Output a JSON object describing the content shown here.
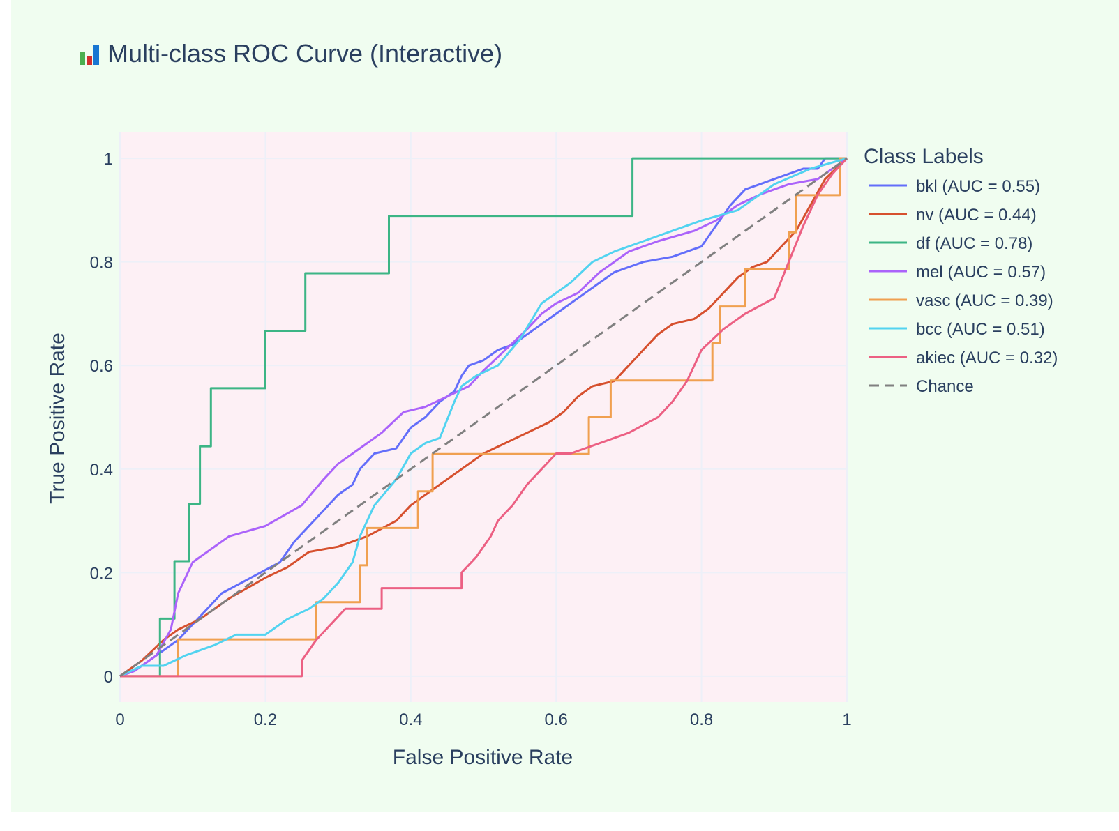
{
  "chart_data": {
    "type": "line",
    "title": "Multi-class ROC Curve (Interactive)",
    "title_icon": "bar-chart-icon",
    "xlabel": "False Positive Rate",
    "ylabel": "True Positive Rate",
    "xlim": [
      0,
      1
    ],
    "ylim": [
      -0.05,
      1.05
    ],
    "x_ticks": [
      0,
      0.2,
      0.4,
      0.6,
      0.8,
      1
    ],
    "y_ticks": [
      0,
      0.2,
      0.4,
      0.6,
      0.8,
      1
    ],
    "x_tick_labels": [
      "0",
      "0.2",
      "0.4",
      "0.6",
      "0.8",
      "1"
    ],
    "y_tick_labels": [
      "0",
      "0.2",
      "0.4",
      "0.6",
      "0.8",
      "1"
    ],
    "grid": true,
    "legend_title": "Class Labels",
    "legend_position": "right",
    "plot_background": "#fdf0f5",
    "paper_background": "#f0fdf0",
    "series": [
      {
        "name": "bkl (AUC = 0.55)",
        "color": "#636efa",
        "dash": "solid",
        "x": [
          0,
          0.02,
          0.05,
          0.08,
          0.1,
          0.14,
          0.18,
          0.22,
          0.24,
          0.26,
          0.28,
          0.3,
          0.32,
          0.33,
          0.35,
          0.38,
          0.4,
          0.42,
          0.44,
          0.46,
          0.47,
          0.48,
          0.5,
          0.52,
          0.54,
          0.56,
          0.58,
          0.6,
          0.62,
          0.64,
          0.66,
          0.68,
          0.72,
          0.76,
          0.8,
          0.82,
          0.84,
          0.86,
          0.88,
          0.9,
          0.92,
          0.94,
          0.96,
          0.97,
          1
        ],
        "y": [
          0,
          0.01,
          0.04,
          0.07,
          0.1,
          0.16,
          0.19,
          0.22,
          0.26,
          0.29,
          0.32,
          0.35,
          0.37,
          0.4,
          0.43,
          0.44,
          0.48,
          0.5,
          0.53,
          0.55,
          0.58,
          0.6,
          0.61,
          0.63,
          0.64,
          0.66,
          0.68,
          0.7,
          0.72,
          0.74,
          0.76,
          0.78,
          0.8,
          0.81,
          0.83,
          0.87,
          0.91,
          0.94,
          0.95,
          0.96,
          0.97,
          0.98,
          0.98,
          1,
          1
        ]
      },
      {
        "name": "nv (AUC = 0.44)",
        "color": "#d6502e",
        "dash": "solid",
        "x": [
          0,
          0.03,
          0.06,
          0.08,
          0.11,
          0.15,
          0.2,
          0.23,
          0.26,
          0.3,
          0.34,
          0.38,
          0.4,
          0.42,
          0.45,
          0.48,
          0.5,
          0.53,
          0.56,
          0.59,
          0.61,
          0.63,
          0.65,
          0.68,
          0.7,
          0.72,
          0.74,
          0.76,
          0.79,
          0.81,
          0.83,
          0.85,
          0.87,
          0.89,
          0.91,
          0.93,
          0.95,
          0.97,
          1
        ],
        "y": [
          0,
          0.03,
          0.07,
          0.09,
          0.11,
          0.15,
          0.19,
          0.21,
          0.24,
          0.25,
          0.27,
          0.3,
          0.33,
          0.35,
          0.38,
          0.41,
          0.43,
          0.45,
          0.47,
          0.49,
          0.51,
          0.54,
          0.56,
          0.57,
          0.6,
          0.63,
          0.66,
          0.68,
          0.69,
          0.71,
          0.74,
          0.77,
          0.79,
          0.8,
          0.83,
          0.86,
          0.91,
          0.96,
          1
        ]
      },
      {
        "name": "df (AUC = 0.78)",
        "color": "#3cb585",
        "dash": "solid",
        "x": [
          0,
          0.055,
          0.055,
          0.075,
          0.075,
          0.095,
          0.095,
          0.11,
          0.11,
          0.125,
          0.125,
          0.2,
          0.2,
          0.255,
          0.255,
          0.37,
          0.37,
          0.705,
          0.705,
          1
        ],
        "y": [
          0,
          0,
          0.111,
          0.111,
          0.222,
          0.222,
          0.333,
          0.333,
          0.444,
          0.444,
          0.556,
          0.556,
          0.667,
          0.667,
          0.778,
          0.778,
          0.889,
          0.889,
          1,
          1
        ]
      },
      {
        "name": "mel (AUC = 0.57)",
        "color": "#ab63fa",
        "dash": "solid",
        "x": [
          0,
          0.02,
          0.05,
          0.07,
          0.08,
          0.1,
          0.12,
          0.15,
          0.2,
          0.25,
          0.28,
          0.3,
          0.33,
          0.36,
          0.39,
          0.42,
          0.45,
          0.48,
          0.5,
          0.53,
          0.56,
          0.58,
          0.6,
          0.63,
          0.66,
          0.7,
          0.74,
          0.79,
          0.82,
          0.85,
          0.88,
          0.92,
          0.96,
          1
        ],
        "y": [
          0,
          0.01,
          0.04,
          0.09,
          0.16,
          0.22,
          0.24,
          0.27,
          0.29,
          0.33,
          0.38,
          0.41,
          0.44,
          0.47,
          0.51,
          0.52,
          0.54,
          0.56,
          0.59,
          0.63,
          0.67,
          0.7,
          0.72,
          0.74,
          0.78,
          0.82,
          0.84,
          0.86,
          0.88,
          0.91,
          0.93,
          0.95,
          0.96,
          1
        ]
      },
      {
        "name": "vasc (AUC = 0.39)",
        "color": "#f0a050",
        "dash": "solid",
        "x": [
          0,
          0.08,
          0.08,
          0.27,
          0.27,
          0.33,
          0.33,
          0.34,
          0.34,
          0.41,
          0.41,
          0.43,
          0.43,
          0.645,
          0.645,
          0.675,
          0.675,
          0.815,
          0.815,
          0.825,
          0.825,
          0.86,
          0.86,
          0.92,
          0.92,
          0.93,
          0.93,
          0.99,
          0.99,
          1
        ],
        "y": [
          0,
          0,
          0.071,
          0.071,
          0.143,
          0.143,
          0.214,
          0.214,
          0.286,
          0.286,
          0.357,
          0.357,
          0.429,
          0.429,
          0.5,
          0.5,
          0.571,
          0.571,
          0.643,
          0.643,
          0.714,
          0.714,
          0.786,
          0.786,
          0.857,
          0.857,
          0.929,
          0.929,
          1,
          1
        ]
      },
      {
        "name": "bcc (AUC = 0.51)",
        "color": "#52d3f0",
        "dash": "solid",
        "x": [
          0,
          0.03,
          0.06,
          0.09,
          0.13,
          0.16,
          0.2,
          0.23,
          0.26,
          0.28,
          0.3,
          0.32,
          0.33,
          0.35,
          0.38,
          0.4,
          0.42,
          0.44,
          0.46,
          0.47,
          0.49,
          0.52,
          0.55,
          0.58,
          0.62,
          0.65,
          0.68,
          0.72,
          0.76,
          0.8,
          0.85,
          0.9,
          0.95,
          1
        ],
        "y": [
          0,
          0.02,
          0.02,
          0.04,
          0.06,
          0.08,
          0.08,
          0.11,
          0.13,
          0.15,
          0.18,
          0.22,
          0.27,
          0.33,
          0.38,
          0.43,
          0.45,
          0.46,
          0.53,
          0.56,
          0.58,
          0.6,
          0.65,
          0.72,
          0.76,
          0.8,
          0.82,
          0.84,
          0.86,
          0.88,
          0.9,
          0.95,
          0.98,
          1
        ]
      },
      {
        "name": "akiec (AUC = 0.32)",
        "color": "#ec6083",
        "dash": "solid",
        "x": [
          0,
          0.25,
          0.25,
          0.27,
          0.29,
          0.31,
          0.36,
          0.36,
          0.47,
          0.47,
          0.49,
          0.51,
          0.52,
          0.54,
          0.56,
          0.58,
          0.6,
          0.62,
          0.62,
          0.7,
          0.7,
          0.74,
          0.76,
          0.78,
          0.79,
          0.8,
          0.83,
          0.86,
          0.9,
          0.92,
          0.94,
          0.96,
          0.98,
          1
        ],
        "y": [
          0,
          0,
          0.03,
          0.07,
          0.1,
          0.13,
          0.13,
          0.17,
          0.17,
          0.2,
          0.23,
          0.27,
          0.3,
          0.33,
          0.37,
          0.4,
          0.43,
          0.43,
          0.43,
          0.47,
          0.47,
          0.5,
          0.53,
          0.57,
          0.6,
          0.63,
          0.67,
          0.7,
          0.73,
          0.8,
          0.87,
          0.93,
          0.97,
          1
        ]
      },
      {
        "name": "Chance",
        "color": "#808080",
        "dash": "dash",
        "x": [
          0,
          1
        ],
        "y": [
          0,
          1
        ]
      }
    ]
  }
}
